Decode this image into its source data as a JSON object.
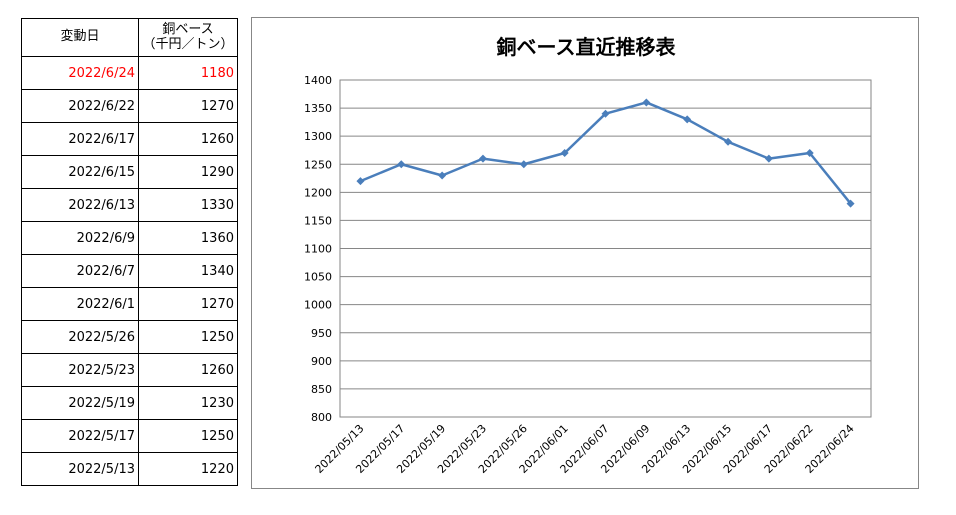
{
  "table": {
    "header": {
      "date": "変動日",
      "price_line1": "銅ベース",
      "price_line2": "（千円／トン）"
    },
    "rows": [
      {
        "date": "2022/6/24",
        "price": "1180",
        "highlight": true
      },
      {
        "date": "2022/6/22",
        "price": "1270",
        "highlight": false
      },
      {
        "date": "2022/6/17",
        "price": "1260",
        "highlight": false
      },
      {
        "date": "2022/6/15",
        "price": "1290",
        "highlight": false
      },
      {
        "date": "2022/6/13",
        "price": "1330",
        "highlight": false
      },
      {
        "date": "2022/6/9",
        "price": "1360",
        "highlight": false
      },
      {
        "date": "2022/6/7",
        "price": "1340",
        "highlight": false
      },
      {
        "date": "2022/6/1",
        "price": "1270",
        "highlight": false
      },
      {
        "date": "2022/5/26",
        "price": "1250",
        "highlight": false
      },
      {
        "date": "2022/5/23",
        "price": "1260",
        "highlight": false
      },
      {
        "date": "2022/5/19",
        "price": "1230",
        "highlight": false
      },
      {
        "date": "2022/5/17",
        "price": "1250",
        "highlight": false
      },
      {
        "date": "2022/5/13",
        "price": "1220",
        "highlight": false
      }
    ]
  },
  "colors": {
    "highlight_text": "#ff0000",
    "series_line": "#4a7ebb",
    "gridline": "#868686",
    "chart_border": "#878787"
  },
  "chart_data": {
    "type": "line",
    "title": "銅ベース直近推移表",
    "xlabel": "",
    "ylabel": "",
    "categories": [
      "2022/05/13",
      "2022/05/17",
      "2022/05/19",
      "2022/05/23",
      "2022/05/26",
      "2022/06/01",
      "2022/06/07",
      "2022/06/09",
      "2022/06/13",
      "2022/06/15",
      "2022/06/17",
      "2022/06/22",
      "2022/06/24"
    ],
    "series": [
      {
        "values": [
          1220,
          1250,
          1230,
          1260,
          1250,
          1270,
          1340,
          1360,
          1330,
          1290,
          1260,
          1270,
          1180
        ]
      }
    ],
    "ylim": [
      800,
      1400
    ],
    "ystep": 50,
    "grid": true,
    "legend": "none",
    "marker": "diamond"
  }
}
